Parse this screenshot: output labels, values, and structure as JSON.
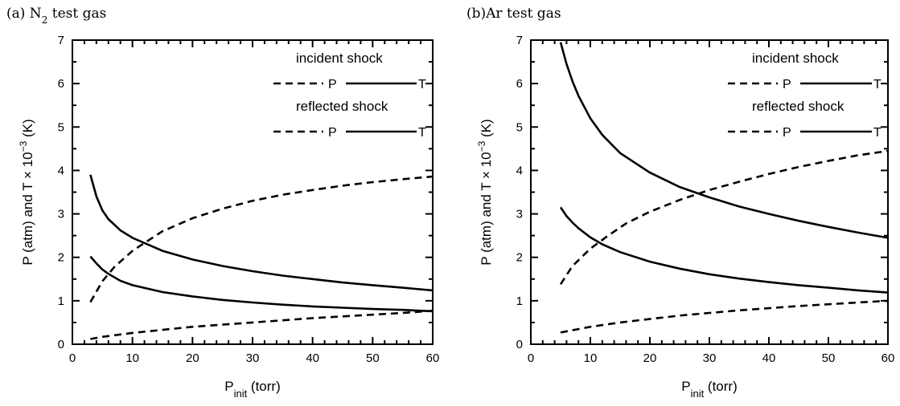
{
  "chart_data": [
    {
      "type": "line",
      "title": "(a) N",
      "title_subscript": "2",
      "title_rest": " test gas",
      "xlabel": "P",
      "xlabel_subscript": "init",
      "xlabel_rest": " (torr)",
      "ylabel": "P (atm) and T  × 10",
      "ylabel_superscript": "−3",
      "ylabel_rest": " (K)",
      "xlim": [
        0,
        60
      ],
      "ylim": [
        0,
        7
      ],
      "xticks": [
        0,
        10,
        20,
        30,
        40,
        50,
        60
      ],
      "yticks": [
        0,
        1,
        2,
        3,
        4,
        5,
        6,
        7
      ],
      "legend": {
        "groups": [
          {
            "label": "incident shock",
            "p": "P",
            "t": "T"
          },
          {
            "label": "reflected shock",
            "p": "P",
            "t": "T"
          }
        ]
      },
      "series": [
        {
          "style": "dashed",
          "x": [
            3,
            5,
            7,
            10,
            15,
            20,
            25,
            30,
            35,
            40,
            45,
            50,
            55,
            60
          ],
          "values": [
            0.97,
            1.45,
            1.78,
            2.15,
            2.6,
            2.9,
            3.12,
            3.3,
            3.44,
            3.55,
            3.65,
            3.73,
            3.8,
            3.86
          ]
        },
        {
          "style": "solid",
          "x": [
            3,
            4,
            5,
            6,
            8,
            10,
            15,
            20,
            25,
            30,
            35,
            40,
            45,
            50,
            55,
            60
          ],
          "values": [
            3.9,
            3.4,
            3.08,
            2.88,
            2.62,
            2.45,
            2.15,
            1.95,
            1.8,
            1.68,
            1.58,
            1.5,
            1.42,
            1.36,
            1.3,
            1.24
          ]
        },
        {
          "style": "dashed",
          "x": [
            3,
            5,
            10,
            15,
            20,
            25,
            30,
            35,
            40,
            45,
            50,
            55,
            60
          ],
          "values": [
            0.12,
            0.17,
            0.26,
            0.33,
            0.4,
            0.45,
            0.5,
            0.55,
            0.6,
            0.64,
            0.68,
            0.72,
            0.77
          ]
        },
        {
          "style": "solid",
          "x": [
            3,
            4,
            5,
            6,
            8,
            10,
            15,
            20,
            25,
            30,
            35,
            40,
            45,
            50,
            55,
            60
          ],
          "values": [
            2.02,
            1.86,
            1.72,
            1.62,
            1.46,
            1.36,
            1.2,
            1.1,
            1.02,
            0.96,
            0.91,
            0.87,
            0.84,
            0.81,
            0.79,
            0.76
          ]
        }
      ]
    },
    {
      "type": "line",
      "title": "(b)Ar test gas",
      "title_subscript": "",
      "title_rest": "",
      "xlabel": "P",
      "xlabel_subscript": "init",
      "xlabel_rest": " (torr)",
      "ylabel": "P (atm) and T  × 10",
      "ylabel_superscript": "−3",
      "ylabel_rest": " (K)",
      "xlim": [
        0,
        60
      ],
      "ylim": [
        0,
        7
      ],
      "xticks": [
        0,
        10,
        20,
        30,
        40,
        50,
        60
      ],
      "yticks": [
        0,
        1,
        2,
        3,
        4,
        5,
        6,
        7
      ],
      "legend": {
        "groups": [
          {
            "label": "incident shock",
            "p": "P",
            "t": "T"
          },
          {
            "label": "reflected shock",
            "p": "P",
            "t": "T"
          }
        ]
      },
      "series": [
        {
          "style": "dashed",
          "x": [
            5,
            7,
            10,
            13,
            16,
            20,
            25,
            30,
            35,
            40,
            45,
            50,
            55,
            60
          ],
          "values": [
            1.38,
            1.8,
            2.2,
            2.5,
            2.78,
            3.05,
            3.32,
            3.55,
            3.74,
            3.92,
            4.08,
            4.22,
            4.35,
            4.45
          ]
        },
        {
          "style": "solid",
          "x": [
            5,
            6,
            7,
            8,
            10,
            12,
            15,
            20,
            25,
            30,
            35,
            40,
            45,
            50,
            55,
            60
          ],
          "values": [
            6.95,
            6.45,
            6.05,
            5.72,
            5.2,
            4.82,
            4.4,
            3.95,
            3.62,
            3.38,
            3.17,
            3.0,
            2.84,
            2.7,
            2.57,
            2.45
          ]
        },
        {
          "style": "dashed",
          "x": [
            5,
            10,
            15,
            20,
            25,
            30,
            35,
            40,
            45,
            50,
            55,
            60
          ],
          "values": [
            0.27,
            0.4,
            0.5,
            0.58,
            0.66,
            0.72,
            0.78,
            0.83,
            0.88,
            0.92,
            0.96,
            1.0
          ]
        },
        {
          "style": "solid",
          "x": [
            5,
            6,
            7,
            8,
            10,
            12,
            15,
            20,
            25,
            30,
            35,
            40,
            45,
            50,
            55,
            60
          ],
          "values": [
            3.15,
            2.95,
            2.8,
            2.67,
            2.46,
            2.3,
            2.12,
            1.9,
            1.74,
            1.61,
            1.51,
            1.43,
            1.36,
            1.3,
            1.24,
            1.19
          ]
        }
      ]
    }
  ]
}
